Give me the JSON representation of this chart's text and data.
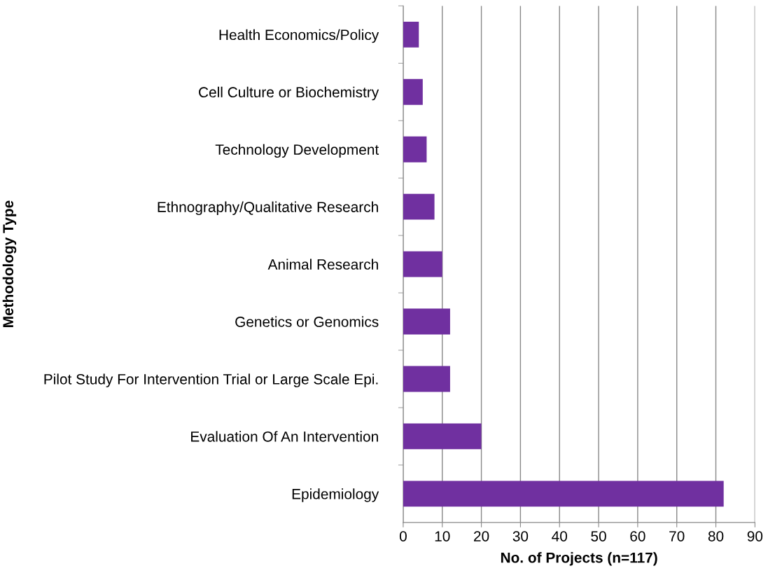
{
  "chart_data": {
    "type": "bar",
    "orientation": "horizontal",
    "xlabel": "No. of Projects (n=117)",
    "ylabel": "Methodology Type",
    "categories": [
      "Health Economics/Policy",
      "Cell Culture or Biochemistry",
      "Technology Development",
      "Ethnography/Qualitative Research",
      "Animal Research",
      "Genetics or Genomics",
      "Pilot Study For Intervention Trial or Large Scale Epi.",
      "Evaluation Of An Intervention",
      "Epidemiology"
    ],
    "values": [
      4,
      5,
      6,
      8,
      10,
      12,
      12,
      20,
      82
    ],
    "color": "#7030a0",
    "xlim": [
      0,
      90
    ],
    "xticks": [
      0,
      10,
      20,
      30,
      40,
      50,
      60,
      70,
      80,
      90
    ],
    "grid": "x"
  }
}
